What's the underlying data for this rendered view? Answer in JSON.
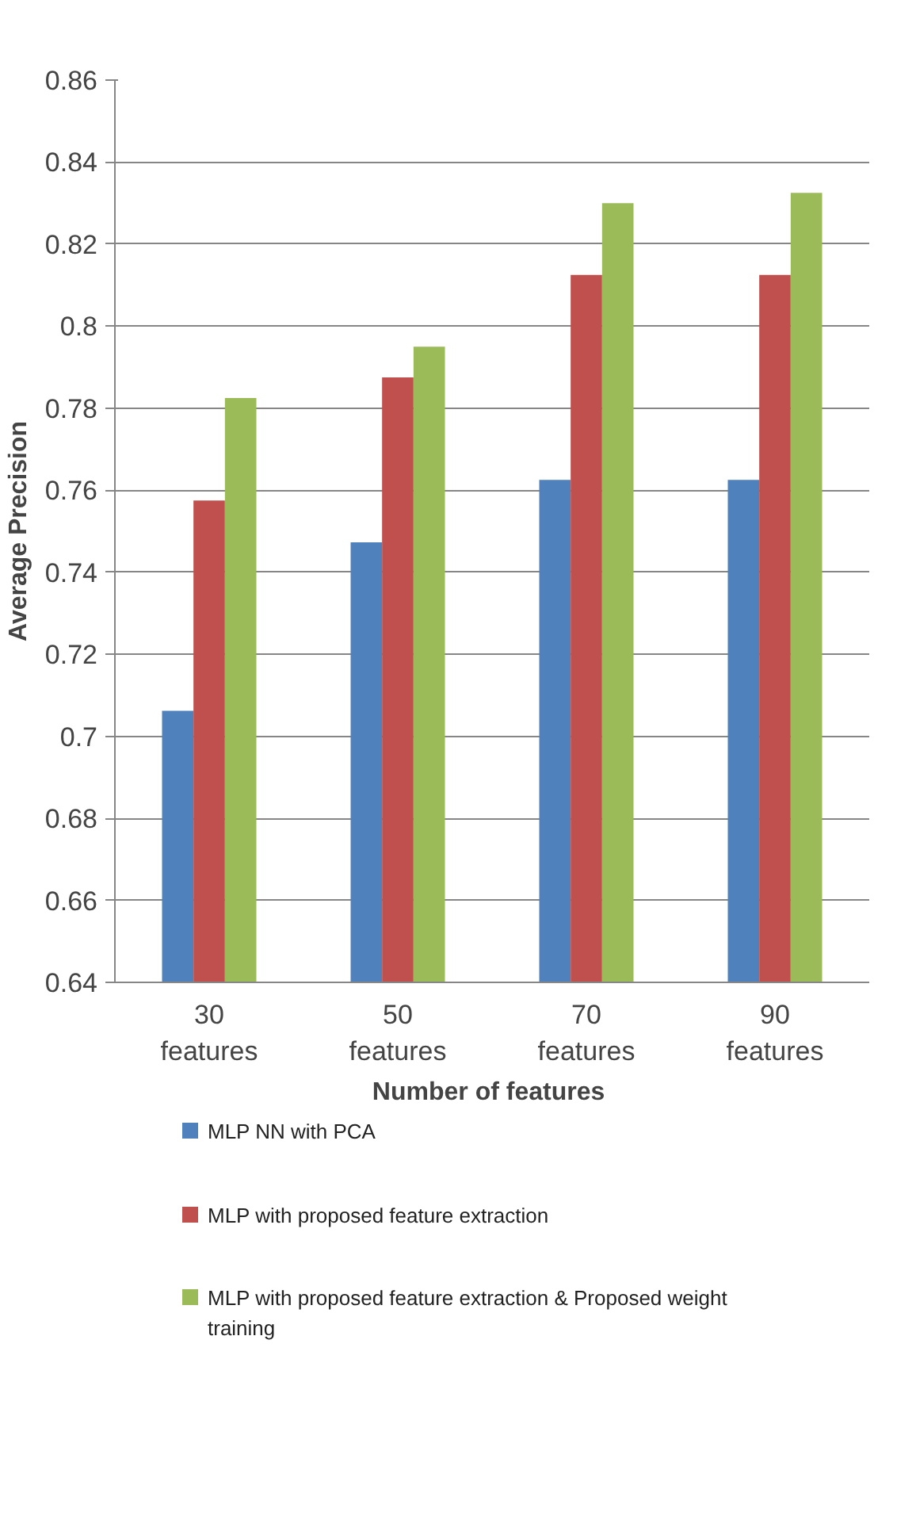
{
  "chart_data": {
    "type": "bar",
    "xlabel": "Number  of features",
    "ylabel": "Average Precision",
    "categories": [
      "30 features",
      "50 features",
      "70 features",
      "90 features"
    ],
    "series": [
      {
        "name": "MLP NN with PCA",
        "color": "#4f81bd",
        "values": [
          0.7062,
          0.7473,
          0.7625,
          0.7625
        ]
      },
      {
        "name": "MLP with proposed feature extraction",
        "color": "#c0504d",
        "values": [
          0.7575,
          0.7875,
          0.8125,
          0.8125
        ]
      },
      {
        "name": "MLP with proposed feature extraction & Proposed weight training",
        "color": "#9bbb59",
        "values": [
          0.7825,
          0.795,
          0.83,
          0.8325
        ]
      }
    ],
    "ylim": [
      0.64,
      0.86
    ],
    "yticks": [
      0.64,
      0.66,
      0.68,
      0.7,
      0.72,
      0.74,
      0.76,
      0.78,
      0.8,
      0.82,
      0.84,
      0.86
    ],
    "grid": "y",
    "legend": "bottom"
  }
}
